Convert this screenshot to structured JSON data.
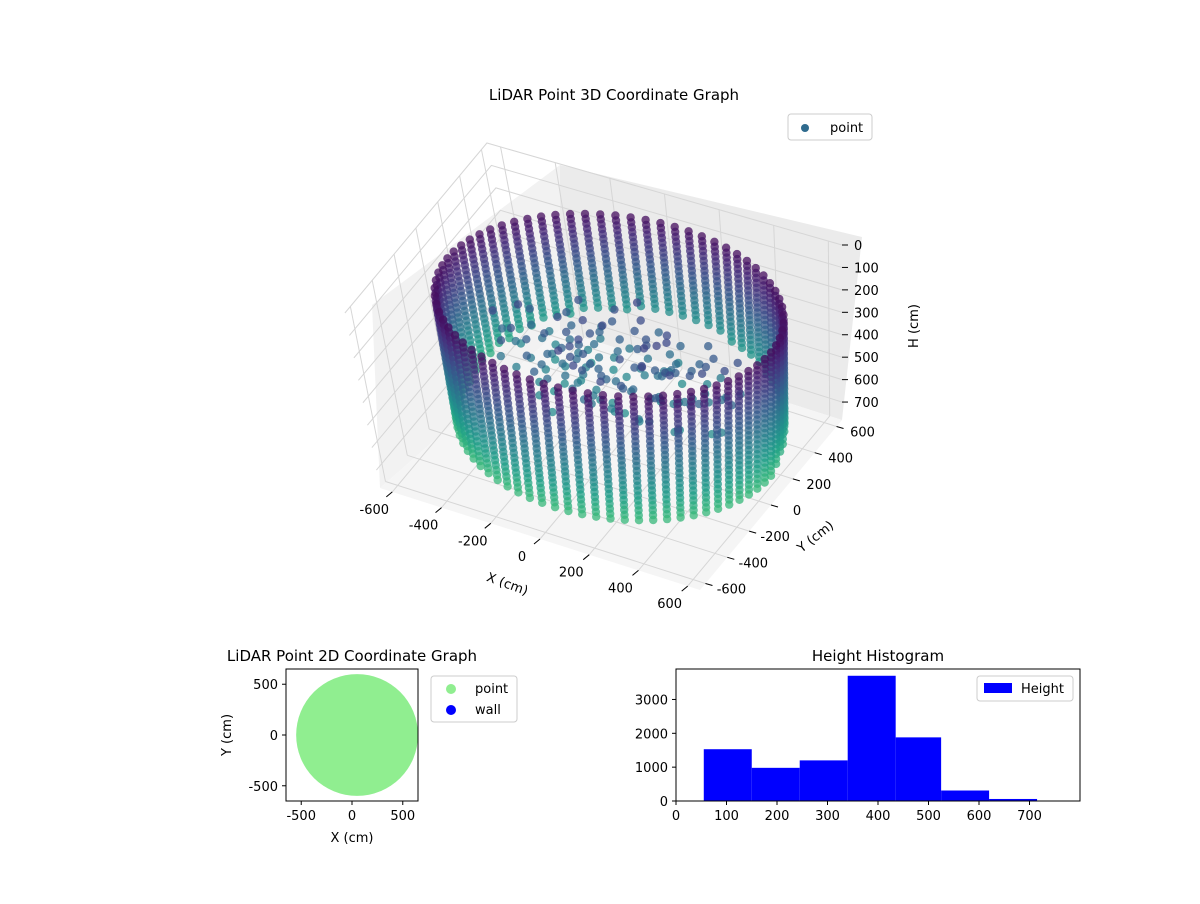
{
  "chart_data": [
    {
      "type": "scatter3d",
      "title": "LiDAR Point 3D Coordinate Graph",
      "xlabel": "X (cm)",
      "ylabel": "Y (cm)",
      "zlabel": "H (cm)",
      "xlim": [
        -650,
        650
      ],
      "ylim": [
        -650,
        650
      ],
      "zlim": [
        780,
        0
      ],
      "xticks": [
        -600,
        -400,
        -200,
        0,
        200,
        400,
        600
      ],
      "yticks": [
        -600,
        -400,
        -200,
        0,
        200,
        400,
        600
      ],
      "zticks": [
        0,
        100,
        200,
        300,
        400,
        500,
        600,
        700
      ],
      "zaxis_inverted": true,
      "legend": {
        "entries": [
          "point"
        ],
        "placement": "top-right"
      },
      "series": [
        {
          "name": "point",
          "color": "#2f6b8e",
          "colormap": "viridis",
          "description_shape": "ring wall of radius ~600 cm spanning heights ~100-650 cm"
        }
      ],
      "ring_radius": 600,
      "ring_center": [
        50,
        0
      ],
      "height_range": [
        100,
        650
      ],
      "grid": true
    },
    {
      "type": "scatter",
      "title": "LiDAR Point 2D Coordinate Graph",
      "xlabel": "X (cm)",
      "ylabel": "Y (cm)",
      "xlim": [
        -650,
        650
      ],
      "ylim": [
        -650,
        650
      ],
      "xticks": [
        -500,
        0,
        500
      ],
      "yticks": [
        -500,
        0,
        500
      ],
      "legend": {
        "entries": [
          "point",
          "wall"
        ],
        "placement": "outside-right"
      },
      "series": [
        {
          "name": "point",
          "color": "#90ee90",
          "shape": "filled disc",
          "center": [
            50,
            0
          ],
          "radius": 600
        },
        {
          "name": "wall",
          "color": "#0000ff",
          "values": []
        }
      ]
    },
    {
      "type": "bar",
      "title": "Height Histogram",
      "xlabel": "",
      "ylabel": "",
      "xlim": [
        0,
        800
      ],
      "ylim": [
        0,
        3900
      ],
      "xticks": [
        0,
        100,
        200,
        300,
        400,
        500,
        600,
        700
      ],
      "yticks": [
        0,
        1000,
        2000,
        3000
      ],
      "legend": {
        "entries": [
          "Height"
        ],
        "placement": "top-right"
      },
      "series": [
        {
          "name": "Height",
          "color": "#0000ff",
          "bins": [
            {
              "x0": 55,
              "x1": 150,
              "value": 1530
            },
            {
              "x0": 150,
              "x1": 245,
              "value": 980
            },
            {
              "x0": 245,
              "x1": 340,
              "value": 1200
            },
            {
              "x0": 340,
              "x1": 435,
              "value": 3700
            },
            {
              "x0": 435,
              "x1": 525,
              "value": 1880
            },
            {
              "x0": 525,
              "x1": 620,
              "value": 310
            },
            {
              "x0": 620,
              "x1": 715,
              "value": 60
            }
          ]
        }
      ]
    }
  ]
}
